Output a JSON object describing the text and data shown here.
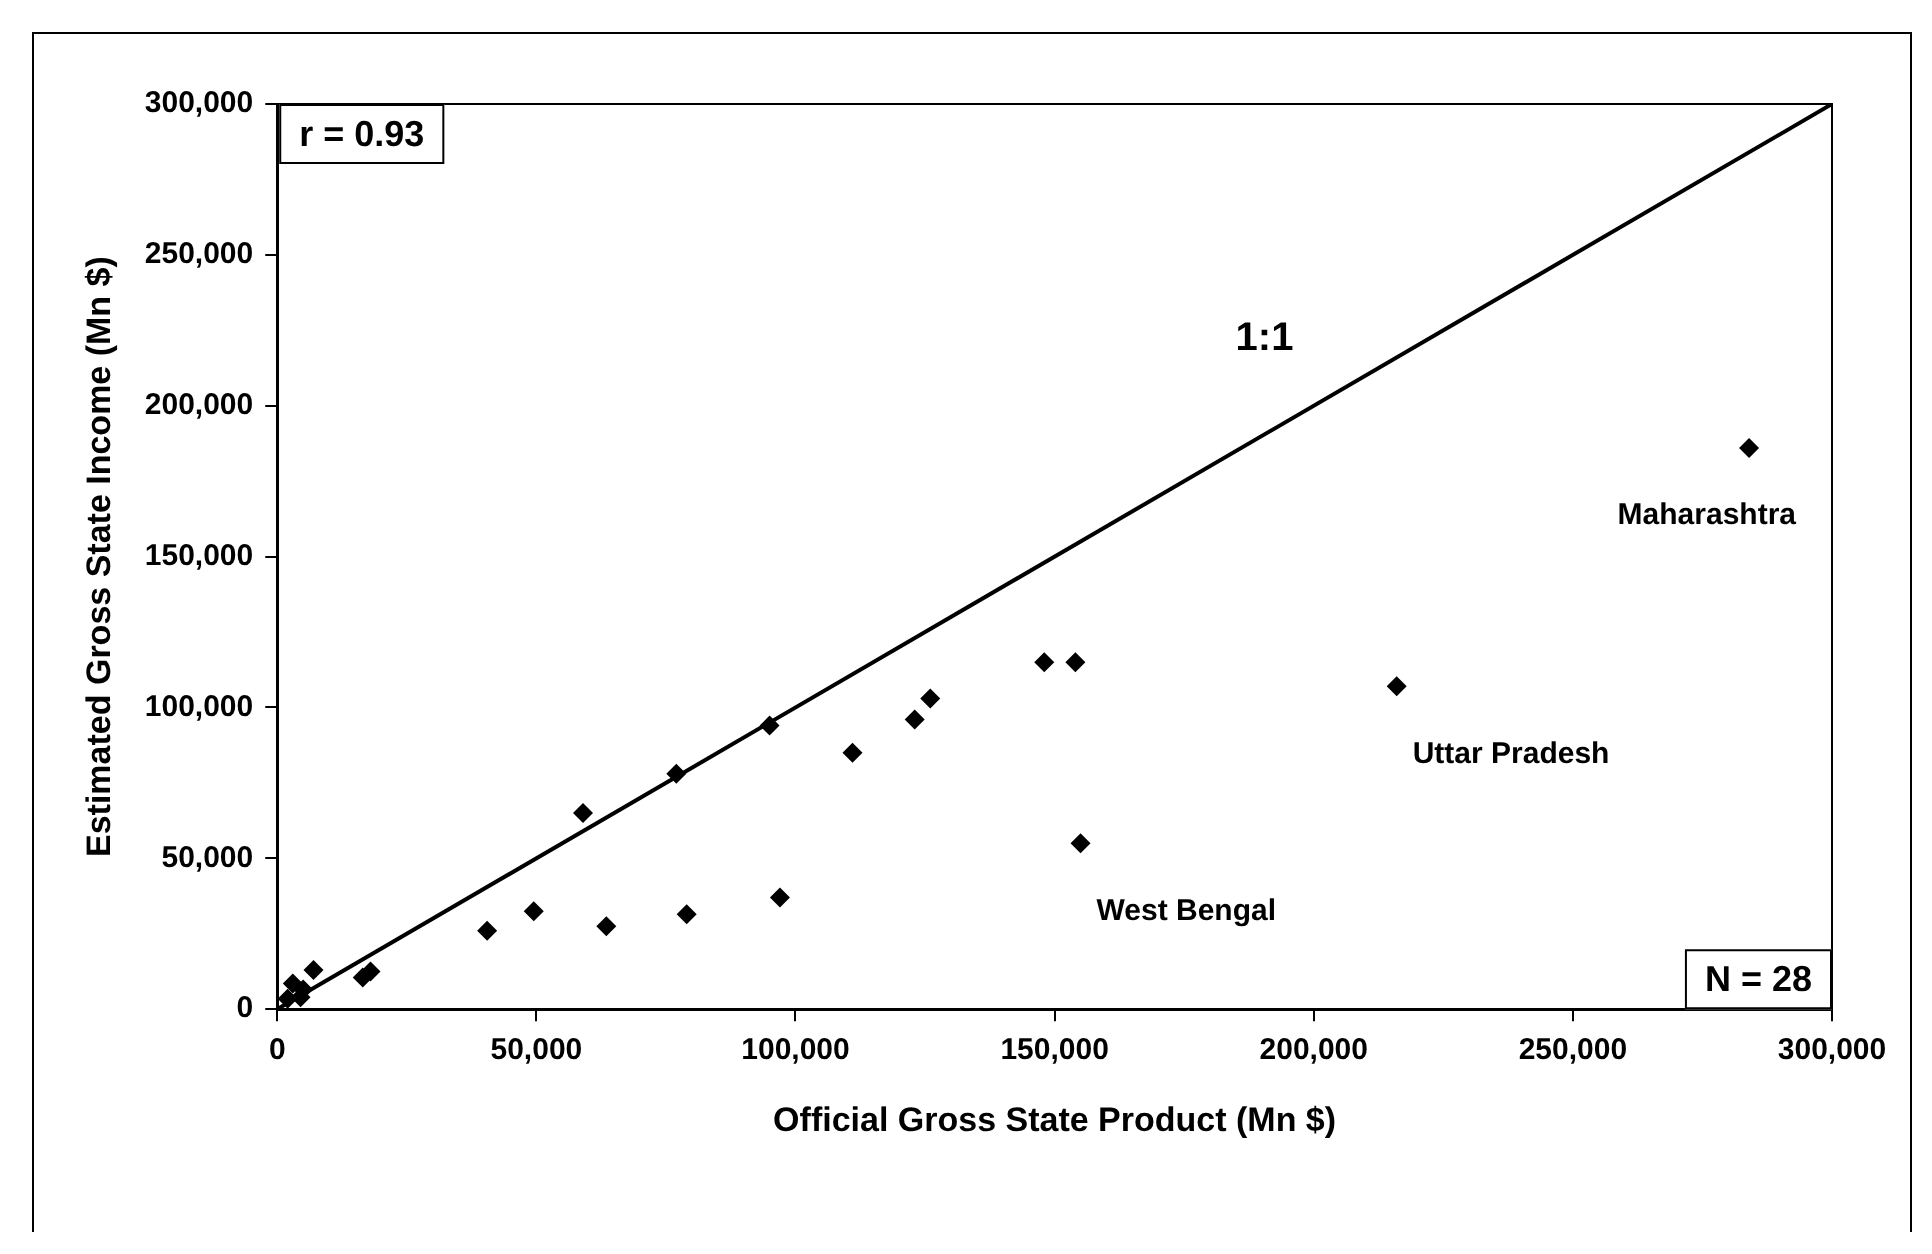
{
  "chart_data": {
    "type": "scatter",
    "xlabel": "Official Gross State Product (Mn $)",
    "ylabel": "Estimated Gross State Income (Mn $)",
    "xlim": [
      0,
      300000
    ],
    "ylim": [
      0,
      300000
    ],
    "xticks": [
      {
        "value": 0,
        "label": "0"
      },
      {
        "value": 50000,
        "label": "50,000"
      },
      {
        "value": 100000,
        "label": "100,000"
      },
      {
        "value": 150000,
        "label": "150,000"
      },
      {
        "value": 200000,
        "label": "200,000"
      },
      {
        "value": 250000,
        "label": "250,000"
      },
      {
        "value": 300000,
        "label": "300,000"
      }
    ],
    "yticks": [
      {
        "value": 0,
        "label": "0"
      },
      {
        "value": 50000,
        "label": "50,000"
      },
      {
        "value": 100000,
        "label": "100,000"
      },
      {
        "value": 150000,
        "label": "150,000"
      },
      {
        "value": 200000,
        "label": "200,000"
      },
      {
        "value": 250000,
        "label": "250,000"
      },
      {
        "value": 300000,
        "label": "300,000"
      }
    ],
    "grid": false,
    "legend": false,
    "marker": "diamond",
    "series": [
      {
        "color": "#000000",
        "x": [
          284000,
          148000,
          154000,
          216000,
          155000,
          126000,
          123000,
          111000,
          95000,
          77000,
          59000,
          49500,
          63500,
          79000,
          97000,
          40500,
          7000,
          16500,
          18000,
          3000,
          2000,
          5000,
          4500
        ],
        "values": [
          186000,
          115000,
          115000,
          107000,
          55000,
          103000,
          96000,
          85000,
          94000,
          78000,
          65000,
          32500,
          27500,
          31500,
          37000,
          26000,
          13000,
          10500,
          12500,
          8500,
          3500,
          6500,
          4000
        ]
      },
      {
        "type": "line",
        "color": "#000000",
        "line_style": "solid",
        "marker": "none",
        "x": [
          0,
          300000
        ],
        "values": [
          0,
          300000
        ]
      }
    ],
    "annotations": [
      "r = 0.93",
      "N = 28",
      "1:1",
      {
        "text": "Maharashtra",
        "x": 284000,
        "y": 186000
      },
      {
        "text": "Uttar Pradesh",
        "x": 216000,
        "y": 107000
      },
      {
        "text": "West Bengal",
        "x": 155000,
        "y": 55000
      }
    ]
  }
}
